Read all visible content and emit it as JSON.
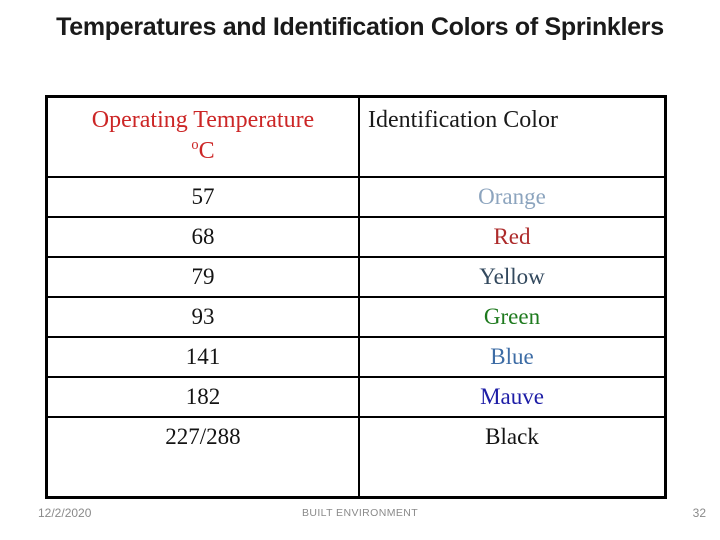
{
  "slide": {
    "title": "Temperatures and Identification Colors of Sprinklers"
  },
  "table": {
    "header": {
      "col1_main": "Operating Temperature",
      "col1_sup": "o",
      "col1_unit": "C",
      "col2": "Identification Color"
    },
    "rows": [
      {
        "temp": "57",
        "color_name": "Orange",
        "color_hex": "#8CA4BE"
      },
      {
        "temp": "68",
        "color_name": "Red",
        "color_hex": "#AD2B2B"
      },
      {
        "temp": "79",
        "color_name": "Yellow",
        "color_hex": "#33495E"
      },
      {
        "temp": "93",
        "color_name": "Green",
        "color_hex": "#1E7A1E"
      },
      {
        "temp": "141",
        "color_name": "Blue",
        "color_hex": "#3D6CA5"
      },
      {
        "temp": "182",
        "color_name": "Mauve",
        "color_hex": "#1D1DA6"
      },
      {
        "temp": "227/288",
        "color_name": "Black",
        "color_hex": "#141414"
      }
    ]
  },
  "footer": {
    "date": "12/2/2020",
    "center": "BUILT ENVIRONMENT",
    "page": "32"
  },
  "colors": {
    "header_red": "#CC2626",
    "table_line": "#000000",
    "footer_gray": "#8A8A8A",
    "title_color": "#1A1A1A"
  }
}
